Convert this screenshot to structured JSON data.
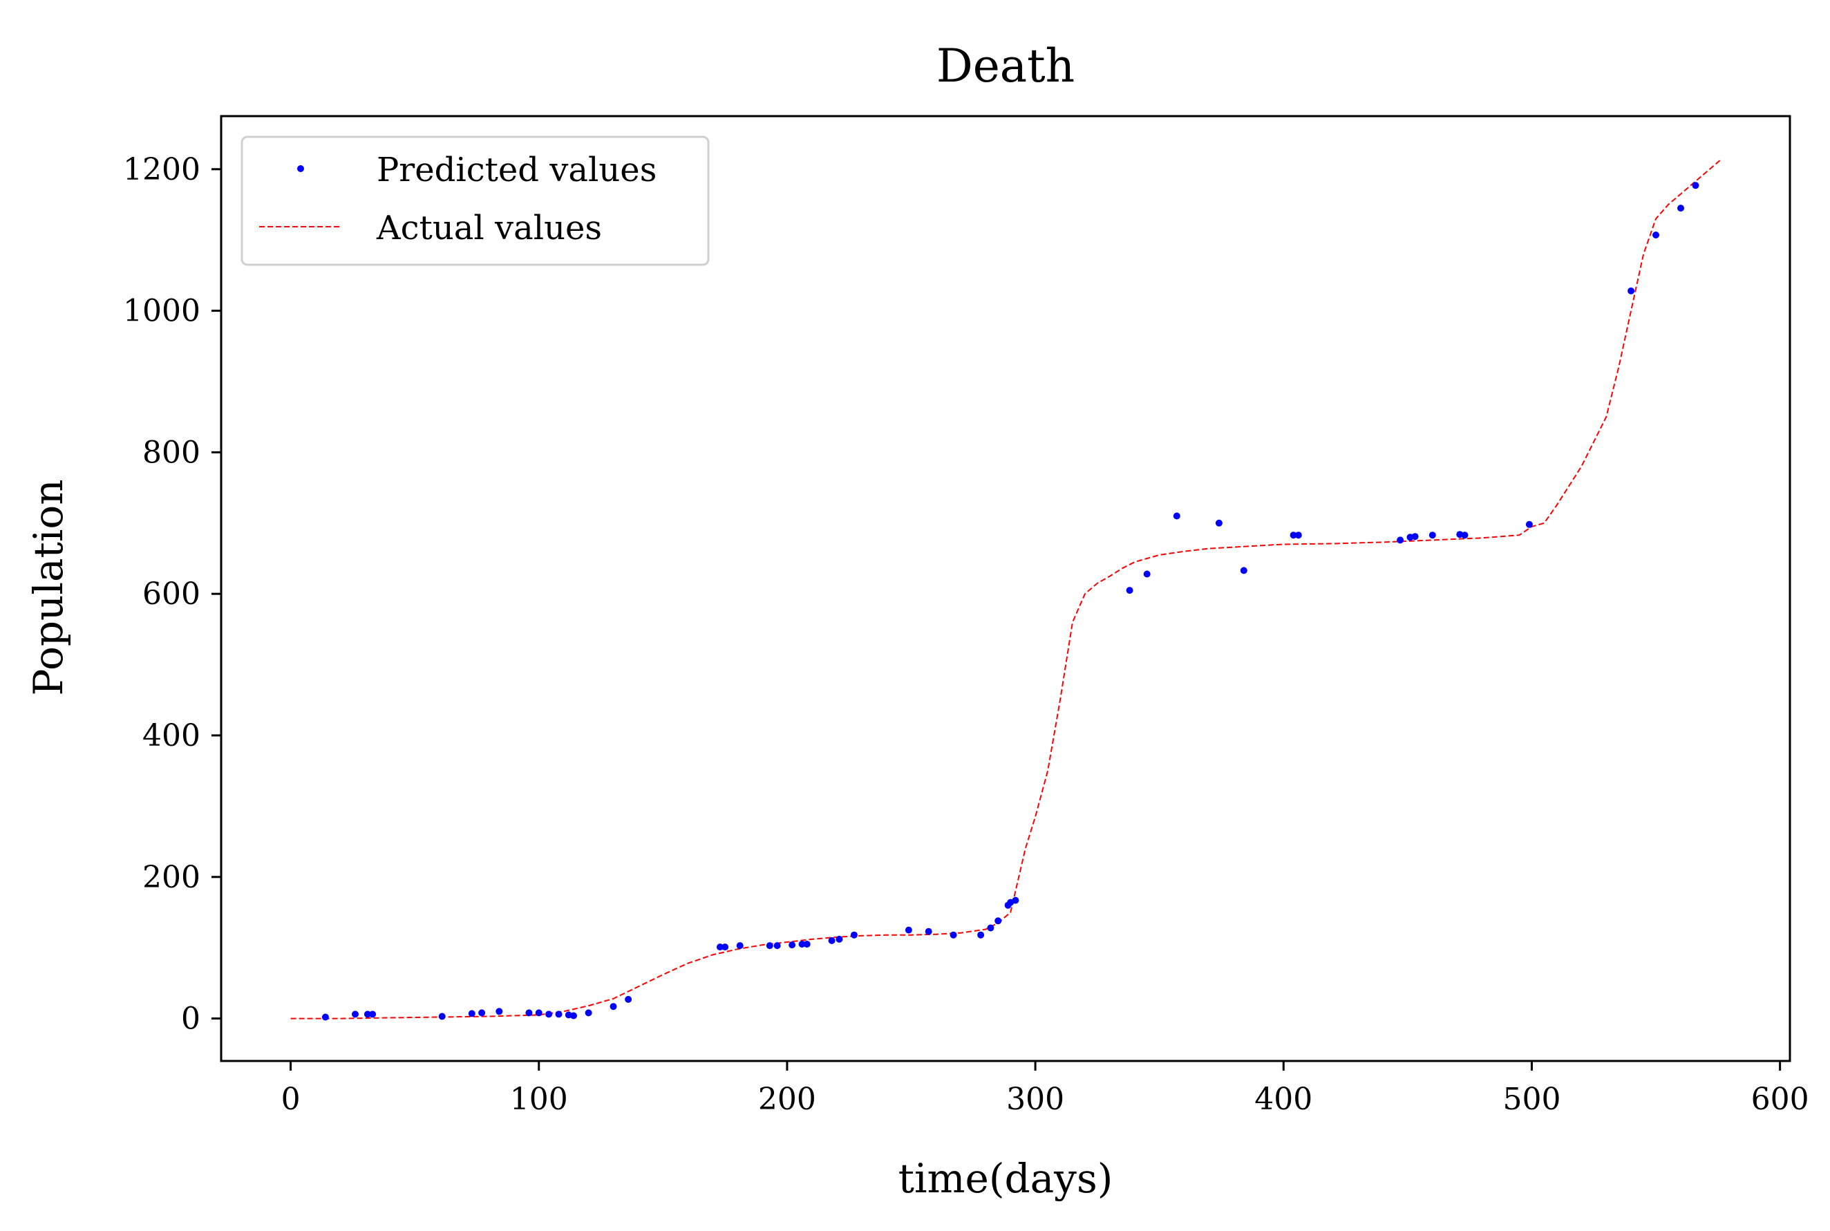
{
  "chart_data": {
    "type": "scatter",
    "title": "Death",
    "xlabel": "time(days)",
    "ylabel": "Population",
    "xlim": [
      -28,
      604
    ],
    "ylim": [
      -60,
      1275
    ],
    "xticks": [
      0,
      100,
      200,
      300,
      400,
      500,
      600
    ],
    "yticks": [
      0,
      200,
      400,
      600,
      800,
      1000,
      1200
    ],
    "grid": false,
    "legend_position": "top-left",
    "legend": [
      "Predicted values",
      "Actual values"
    ],
    "colors": {
      "predicted": "#0000ff",
      "actual": "#ff0000"
    },
    "series": [
      {
        "name": "Predicted values",
        "kind": "points",
        "x": [
          14,
          26,
          31,
          33,
          61,
          73,
          77,
          84,
          96,
          100,
          104,
          108,
          112,
          114,
          120,
          130,
          136,
          173,
          175,
          181,
          193,
          196,
          202,
          206,
          208,
          218,
          221,
          227,
          249,
          257,
          267,
          278,
          282,
          285,
          289,
          290,
          292,
          338,
          345,
          357,
          374,
          384,
          404,
          406,
          447,
          451,
          453,
          460,
          471,
          473,
          499,
          540,
          550,
          560,
          566
        ],
        "y": [
          2,
          6,
          6,
          6,
          3,
          7,
          8,
          10,
          8,
          8,
          6,
          6,
          5,
          4,
          8,
          17,
          27,
          101,
          101,
          103,
          103,
          103,
          104,
          105,
          105,
          110,
          112,
          118,
          125,
          123,
          118,
          118,
          128,
          138,
          160,
          164,
          167,
          605,
          628,
          710,
          700,
          633,
          683,
          683,
          676,
          680,
          681,
          683,
          684,
          683,
          698,
          1028,
          1107,
          1145,
          1177
        ]
      },
      {
        "name": "Actual values",
        "kind": "dashed-line",
        "x": [
          0,
          20,
          40,
          60,
          80,
          100,
          110,
          120,
          130,
          140,
          150,
          160,
          170,
          180,
          190,
          200,
          210,
          220,
          230,
          240,
          250,
          260,
          270,
          280,
          285,
          290,
          293,
          296,
          300,
          305,
          310,
          315,
          320,
          325,
          330,
          335,
          340,
          345,
          350,
          360,
          370,
          380,
          390,
          400,
          420,
          440,
          460,
          480,
          495,
          500,
          505,
          510,
          520,
          530,
          535,
          540,
          545,
          550,
          555,
          560,
          565,
          570,
          576
        ],
        "y": [
          0,
          0,
          1,
          2,
          3,
          5,
          10,
          18,
          28,
          45,
          62,
          78,
          90,
          98,
          104,
          108,
          112,
          115,
          117,
          118,
          118,
          119,
          121,
          126,
          135,
          150,
          195,
          240,
          285,
          350,
          450,
          560,
          600,
          615,
          625,
          636,
          645,
          650,
          655,
          660,
          664,
          666,
          668,
          670,
          671,
          673,
          676,
          679,
          683,
          695,
          700,
          725,
          780,
          850,
          920,
          1000,
          1080,
          1130,
          1150,
          1165,
          1180,
          1195,
          1213
        ]
      }
    ]
  }
}
